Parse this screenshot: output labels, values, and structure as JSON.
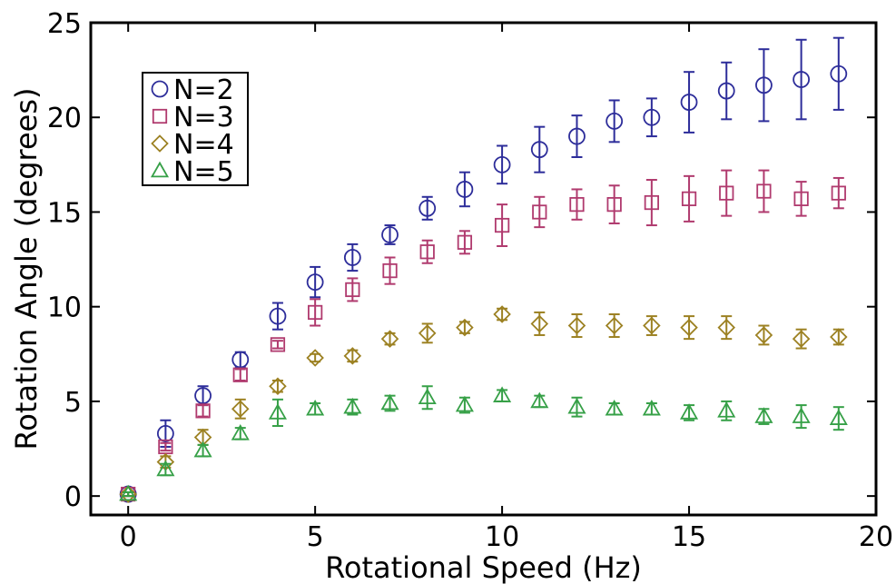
{
  "chart_data": {
    "type": "scatter",
    "xlabel": "Rotational Speed (Hz)",
    "ylabel": "Rotation Angle (degrees)",
    "xlim": [
      -1,
      20
    ],
    "ylim": [
      -1,
      25
    ],
    "xticks": [
      0,
      5,
      10,
      15,
      20
    ],
    "yticks": [
      0,
      5,
      10,
      15,
      20,
      25
    ],
    "grid": false,
    "legend_position": "top-left",
    "x": [
      0,
      1,
      2,
      3,
      4,
      5,
      6,
      7,
      8,
      9,
      10,
      11,
      12,
      13,
      14,
      15,
      16,
      17,
      18,
      19
    ],
    "series": [
      {
        "name": "N=2",
        "marker": "circle",
        "color": "#2d2d9a",
        "values": [
          0.1,
          3.3,
          5.3,
          7.2,
          9.5,
          11.3,
          12.6,
          13.8,
          15.2,
          16.2,
          17.5,
          18.3,
          19.0,
          19.8,
          20.0,
          20.8,
          21.4,
          21.7,
          22.0,
          22.3
        ],
        "errors": [
          0.1,
          0.7,
          0.5,
          0.4,
          0.7,
          0.8,
          0.7,
          0.5,
          0.6,
          0.9,
          1.0,
          1.2,
          1.1,
          1.1,
          1.0,
          1.6,
          1.5,
          1.9,
          2.1,
          1.9
        ]
      },
      {
        "name": "N=3",
        "marker": "square",
        "color": "#b03a6e",
        "values": [
          0.1,
          2.6,
          4.5,
          6.4,
          8.0,
          9.7,
          10.9,
          11.9,
          12.9,
          13.4,
          14.3,
          15.0,
          15.4,
          15.4,
          15.5,
          15.7,
          16.0,
          16.1,
          15.7,
          16.0
        ],
        "errors": [
          0.1,
          0.2,
          0.3,
          0.3,
          0.2,
          0.7,
          0.6,
          0.7,
          0.6,
          0.6,
          1.1,
          0.8,
          0.8,
          1.0,
          1.2,
          1.2,
          1.2,
          1.1,
          0.9,
          0.8
        ]
      },
      {
        "name": "N=4",
        "marker": "diamond",
        "color": "#9c8122",
        "values": [
          0.1,
          1.8,
          3.1,
          4.6,
          5.8,
          7.3,
          7.4,
          8.3,
          8.6,
          8.9,
          9.6,
          9.1,
          9.0,
          9.0,
          9.0,
          8.9,
          8.9,
          8.5,
          8.3,
          8.4
        ],
        "errors": [
          0.1,
          0.3,
          0.4,
          0.5,
          0.3,
          0.2,
          0.3,
          0.3,
          0.5,
          0.3,
          0.3,
          0.6,
          0.6,
          0.6,
          0.5,
          0.6,
          0.6,
          0.5,
          0.5,
          0.4
        ]
      },
      {
        "name": "N=5",
        "marker": "triangle",
        "color": "#36a047",
        "values": [
          0.1,
          1.4,
          2.4,
          3.3,
          4.4,
          4.6,
          4.7,
          4.9,
          5.2,
          4.8,
          5.3,
          5.0,
          4.7,
          4.6,
          4.6,
          4.4,
          4.5,
          4.2,
          4.2,
          4.1
        ],
        "errors": [
          0.1,
          0.3,
          0.3,
          0.3,
          0.7,
          0.3,
          0.4,
          0.4,
          0.6,
          0.4,
          0.3,
          0.3,
          0.5,
          0.3,
          0.3,
          0.4,
          0.5,
          0.4,
          0.6,
          0.6
        ]
      }
    ]
  }
}
